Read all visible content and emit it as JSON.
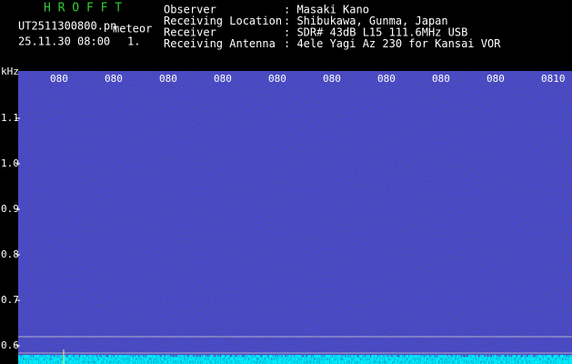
{
  "header": {
    "app": "H R O F F T",
    "file": "UT2511300800.pn",
    "mode": "meteor",
    "datetime": "25.11.30 08:00",
    "channel": "1."
  },
  "info": [
    {
      "label": "Observer",
      "value": ": Masaki Kano"
    },
    {
      "label": "Receiving Location",
      "value": ": Shibukawa, Gunma, Japan"
    },
    {
      "label": "Receiver",
      "value": ": SDR# 43dB L15 111.6MHz USB"
    },
    {
      "label": "Receiving Antenna",
      "value": ": 4ele Yagi Az 230 for Kansai VOR"
    }
  ],
  "spectrogram": {
    "unit": "kHz",
    "time_labels": [
      "080",
      "080",
      "080",
      "080",
      "080",
      "080",
      "080",
      "080",
      "080",
      "0810"
    ],
    "freq_labels": [
      "1.1",
      "1.0",
      "0.9",
      "0.8",
      "0.7",
      "0.6"
    ]
  }
}
